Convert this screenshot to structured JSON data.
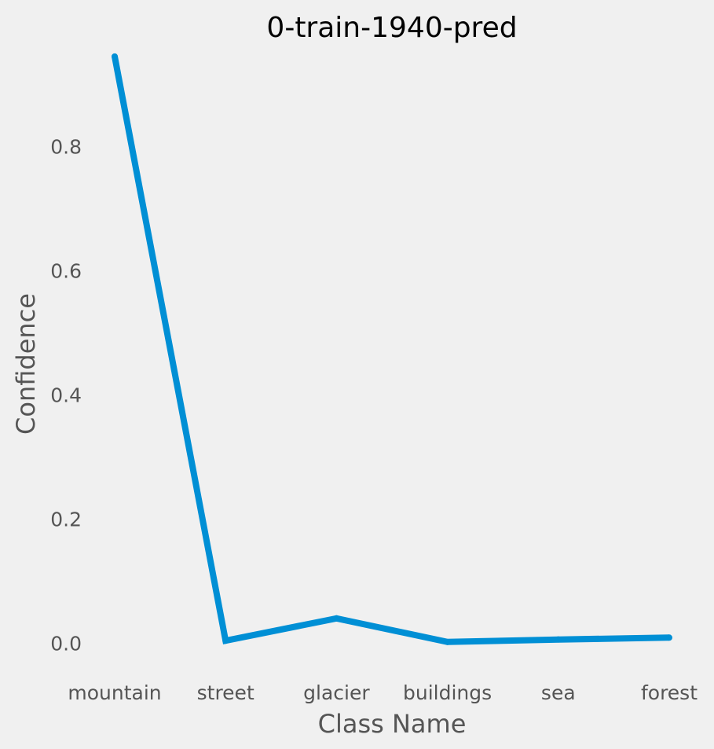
{
  "chart_data": {
    "type": "line",
    "title": "0-train-1940-pred",
    "xlabel": "Class Name",
    "ylabel": "Confidence",
    "categories": [
      "mountain",
      "street",
      "glacier",
      "buildings",
      "sea",
      "forest"
    ],
    "series": [
      {
        "values": [
          0.945,
          0.004,
          0.04,
          0.002,
          0.006,
          0.009
        ]
      }
    ],
    "y_ticks": [
      "0.0",
      "0.2",
      "0.4",
      "0.6",
      "0.8"
    ],
    "ylim": [
      -0.04,
      0.96
    ],
    "grid": false,
    "line_color": "#008fd5",
    "background_color": "#f0f0f0"
  }
}
